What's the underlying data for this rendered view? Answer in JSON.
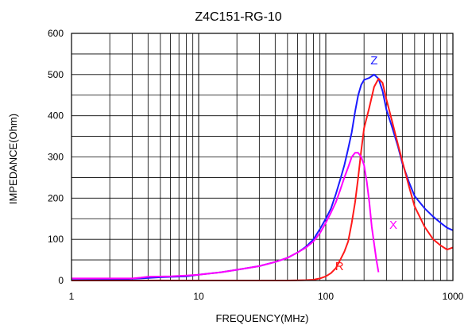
{
  "chart_data": {
    "type": "line",
    "title": "Z4C151-RG-10",
    "xlabel": "FREQUENCY(MHz)",
    "ylabel": "IMPEDANCE(Ohm)",
    "x_scale": "log",
    "xlim": [
      1,
      1000
    ],
    "ylim": [
      0,
      600
    ],
    "x_ticks": [
      1,
      10,
      100,
      1000
    ],
    "y_ticks": [
      0,
      100,
      200,
      300,
      400,
      500,
      600
    ],
    "grid": true,
    "series": [
      {
        "name": "Z",
        "color": "#1a1aff",
        "points": [
          [
            1,
            1
          ],
          [
            2,
            2
          ],
          [
            3.5,
            5
          ],
          [
            5,
            8
          ],
          [
            8,
            10
          ],
          [
            10,
            14
          ],
          [
            15,
            20
          ],
          [
            20,
            26
          ],
          [
            30,
            35
          ],
          [
            40,
            45
          ],
          [
            50,
            55
          ],
          [
            60,
            68
          ],
          [
            70,
            82
          ],
          [
            80,
            100
          ],
          [
            90,
            125
          ],
          [
            100,
            150
          ],
          [
            110,
            175
          ],
          [
            120,
            210
          ],
          [
            130,
            245
          ],
          [
            140,
            280
          ],
          [
            150,
            320
          ],
          [
            160,
            360
          ],
          [
            170,
            410
          ],
          [
            180,
            450
          ],
          [
            190,
            475
          ],
          [
            200,
            487
          ],
          [
            220,
            492
          ],
          [
            240,
            500
          ],
          [
            260,
            490
          ],
          [
            280,
            460
          ],
          [
            300,
            415
          ],
          [
            330,
            375
          ],
          [
            370,
            325
          ],
          [
            400,
            285
          ],
          [
            450,
            240
          ],
          [
            500,
            205
          ],
          [
            600,
            175
          ],
          [
            700,
            155
          ],
          [
            800,
            140
          ],
          [
            900,
            128
          ],
          [
            1000,
            122
          ]
        ]
      },
      {
        "name": "R",
        "color": "#ff1a1a",
        "points": [
          [
            1,
            0
          ],
          [
            10,
            0
          ],
          [
            50,
            0
          ],
          [
            70,
            1
          ],
          [
            80,
            2
          ],
          [
            90,
            5
          ],
          [
            100,
            10
          ],
          [
            110,
            18
          ],
          [
            120,
            30
          ],
          [
            130,
            50
          ],
          [
            140,
            70
          ],
          [
            150,
            95
          ],
          [
            160,
            140
          ],
          [
            170,
            190
          ],
          [
            180,
            250
          ],
          [
            190,
            315
          ],
          [
            200,
            370
          ],
          [
            220,
            420
          ],
          [
            240,
            470
          ],
          [
            260,
            490
          ],
          [
            280,
            480
          ],
          [
            300,
            440
          ],
          [
            330,
            390
          ],
          [
            370,
            330
          ],
          [
            400,
            290
          ],
          [
            450,
            230
          ],
          [
            500,
            180
          ],
          [
            600,
            130
          ],
          [
            700,
            100
          ],
          [
            800,
            85
          ],
          [
            900,
            75
          ],
          [
            1000,
            80
          ]
        ]
      },
      {
        "name": "X",
        "color": "#ff00ff",
        "points": [
          [
            1,
            5
          ],
          [
            3,
            5
          ],
          [
            3.5,
            7
          ],
          [
            4,
            9
          ],
          [
            6,
            10
          ],
          [
            8,
            12
          ],
          [
            10,
            14
          ],
          [
            15,
            20
          ],
          [
            20,
            26
          ],
          [
            30,
            35
          ],
          [
            40,
            45
          ],
          [
            50,
            55
          ],
          [
            60,
            68
          ],
          [
            70,
            80
          ],
          [
            80,
            95
          ],
          [
            90,
            115
          ],
          [
            100,
            140
          ],
          [
            110,
            165
          ],
          [
            120,
            190
          ],
          [
            130,
            220
          ],
          [
            140,
            250
          ],
          [
            150,
            275
          ],
          [
            160,
            300
          ],
          [
            170,
            310
          ],
          [
            180,
            310
          ],
          [
            190,
            300
          ],
          [
            200,
            280
          ],
          [
            210,
            240
          ],
          [
            220,
            190
          ],
          [
            230,
            130
          ],
          [
            240,
            90
          ],
          [
            250,
            50
          ],
          [
            260,
            20
          ]
        ]
      }
    ],
    "annotations": [
      {
        "text": "Z",
        "color": "#1a1aff",
        "x": 240,
        "y": 525
      },
      {
        "text": "R",
        "color": "#ff1a1a",
        "x": 128,
        "y": 25
      },
      {
        "text": "X",
        "color": "#ff00ff",
        "x": 340,
        "y": 125
      }
    ]
  }
}
